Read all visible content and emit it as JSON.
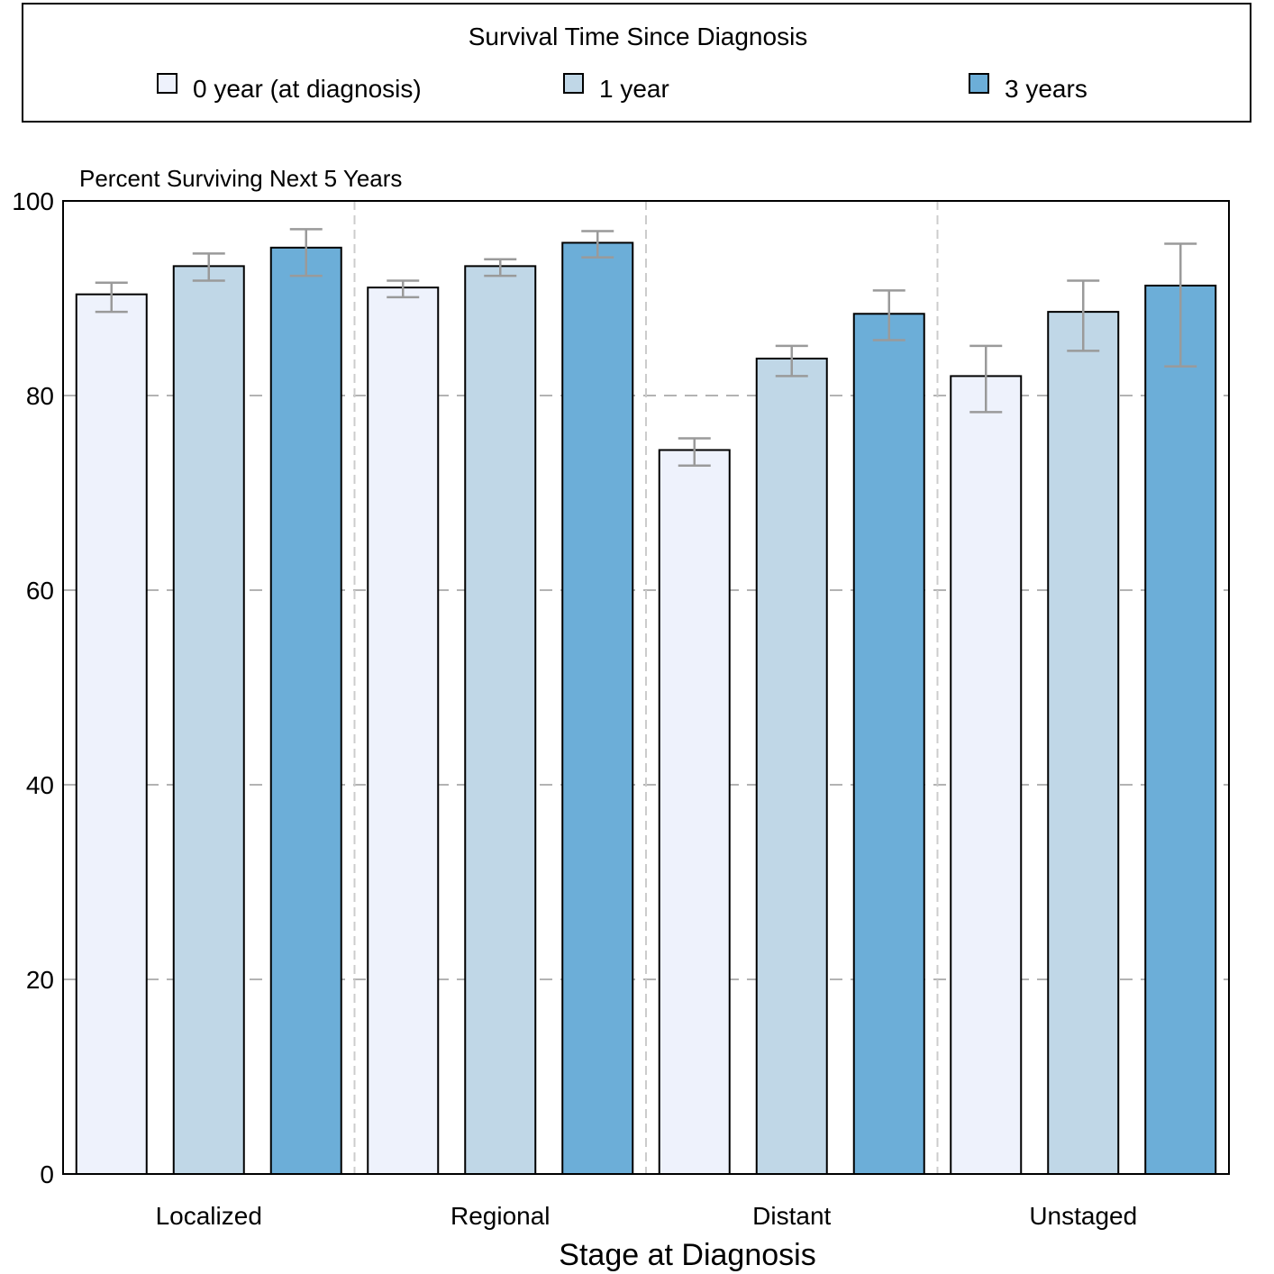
{
  "chart_data": {
    "type": "bar",
    "legend_title": "Survival Time Since Diagnosis",
    "legend_position": "top",
    "ylabel": "Percent Surviving Next 5 Years",
    "xlabel": "Stage at Diagnosis",
    "ylim": [
      0,
      100
    ],
    "yticks": [
      0,
      20,
      40,
      60,
      80,
      100
    ],
    "grid": true,
    "categories": [
      "Localized",
      "Regional",
      "Distant",
      "Unstaged"
    ],
    "series": [
      {
        "name": "0 year (at diagnosis)",
        "color": "#eef2fc",
        "values": [
          90.4,
          91.1,
          74.4,
          82.0
        ],
        "ci_low": [
          88.6,
          90.1,
          72.8,
          78.3
        ],
        "ci_high": [
          91.6,
          91.8,
          75.6,
          85.1
        ]
      },
      {
        "name": "1 year",
        "color": "#c0d7e7",
        "values": [
          93.3,
          93.3,
          83.8,
          88.6
        ],
        "ci_low": [
          91.8,
          92.3,
          82.0,
          84.6
        ],
        "ci_high": [
          94.6,
          94.0,
          85.1,
          91.8
        ]
      },
      {
        "name": "3 years",
        "color": "#6caed8",
        "values": [
          95.2,
          95.7,
          88.4,
          91.3
        ],
        "ci_low": [
          92.3,
          94.2,
          85.7,
          83.0
        ],
        "ci_high": [
          97.1,
          96.9,
          90.8,
          95.6
        ]
      }
    ]
  }
}
